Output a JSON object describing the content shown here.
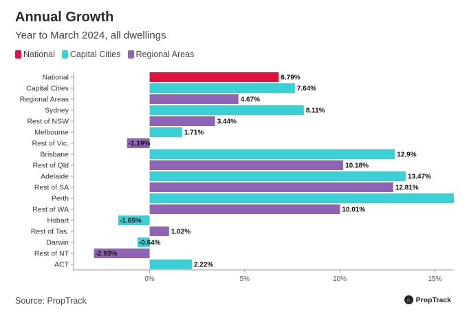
{
  "chart_data": {
    "type": "bar",
    "orientation": "horizontal",
    "title": "Annual Growth",
    "subtitle": "Year to March 2024, all dwellings",
    "legend": [
      {
        "name": "National",
        "color": "#e0103f"
      },
      {
        "name": "Capital Cities",
        "color": "#3ad1d6"
      },
      {
        "name": "Regional Areas",
        "color": "#8f63b5"
      }
    ],
    "legend_position": "top-left",
    "categories": [
      "National",
      "Capital Cities",
      "Regional Areas",
      "Sydney",
      "Rest of NSW",
      "Melbourne",
      "Rest of Vic.",
      "Brisbane",
      "Rest of Qld",
      "Adelaide",
      "Rest of SA",
      "Perth",
      "Rest of WA",
      "Hobart",
      "Rest of Tas.",
      "Darwin",
      "Rest of NT",
      "ACT"
    ],
    "values": [
      6.79,
      7.64,
      4.67,
      8.11,
      3.44,
      1.71,
      -1.19,
      12.9,
      10.18,
      13.47,
      12.81,
      16.0,
      10.01,
      -1.65,
      1.02,
      -0.64,
      -2.93,
      2.22
    ],
    "value_labels": [
      "6.79%",
      "7.64%",
      "4.67%",
      "8.11%",
      "3.44%",
      "1.71%",
      "-1.19%",
      "12.9%",
      "10.18%",
      "13.47%",
      "12.81%",
      "",
      "10.01%",
      "-1.65%",
      "1.02%",
      "-0.64%",
      "-2.93%",
      "2.22%"
    ],
    "groups": [
      "National",
      "Capital Cities",
      "Regional Areas",
      "Capital Cities",
      "Regional Areas",
      "Capital Cities",
      "Regional Areas",
      "Capital Cities",
      "Regional Areas",
      "Capital Cities",
      "Regional Areas",
      "Capital Cities",
      "Regional Areas",
      "Capital Cities",
      "Regional Areas",
      "Capital Cities",
      "Regional Areas",
      "Capital Cities"
    ],
    "xlim": [
      -4,
      16
    ],
    "xticks": [
      0,
      5,
      10,
      15
    ],
    "xtick_labels": [
      "0%",
      "5%",
      "10%",
      "15%"
    ],
    "grid": false
  },
  "source": "Source: PropTrack",
  "logo_text": "PropTrack"
}
